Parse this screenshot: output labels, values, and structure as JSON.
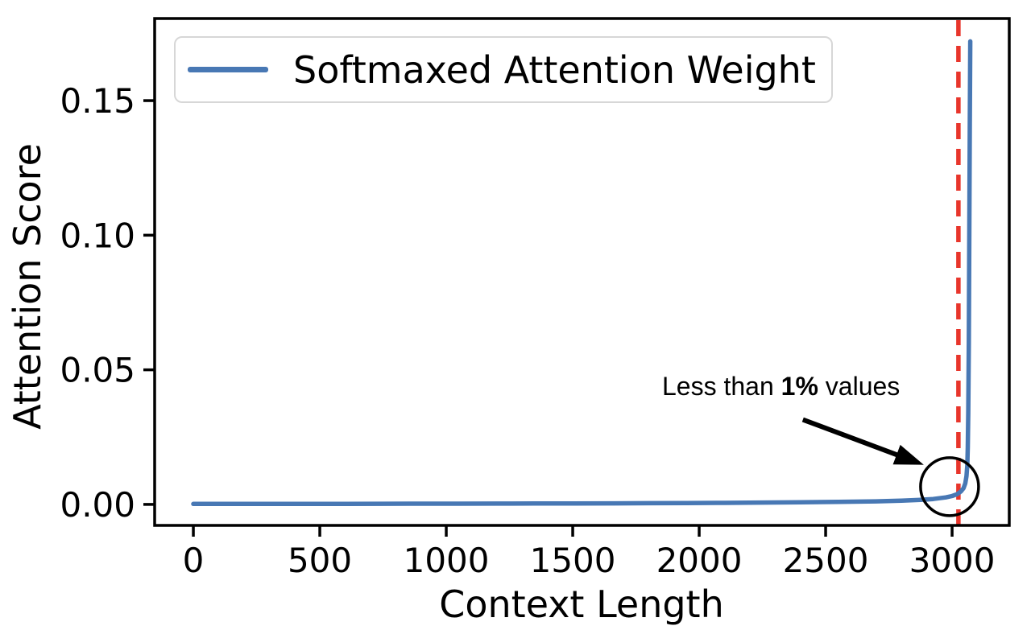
{
  "chart_data": {
    "type": "line",
    "title": "",
    "xlabel": "Context Length",
    "ylabel": "Attention Score",
    "xlim": [
      -153,
      3226
    ],
    "ylim": [
      -0.0078,
      0.1805
    ],
    "x_ticks": [
      0,
      500,
      1000,
      1500,
      2000,
      2500,
      3000
    ],
    "x_tick_labels": [
      "0",
      "500",
      "1000",
      "1500",
      "2000",
      "2500",
      "3000"
    ],
    "y_ticks": [
      0.0,
      0.05,
      0.1,
      0.15
    ],
    "y_tick_labels": [
      "0.00",
      "0.05",
      "0.10",
      "0.15"
    ],
    "grid": false,
    "legend": {
      "position": "upper-left",
      "label": "Softmaxed Attention Weight",
      "line_color": "#4878b4"
    },
    "series": [
      {
        "name": "Softmaxed Attention Weight",
        "color": "#4878b4",
        "points": [
          [
            0,
            0.00018
          ],
          [
            150,
            0.00018
          ],
          [
            300,
            0.0002
          ],
          [
            450,
            0.0002
          ],
          [
            600,
            0.00022
          ],
          [
            750,
            0.00024
          ],
          [
            900,
            0.00026
          ],
          [
            1050,
            0.00028
          ],
          [
            1200,
            0.0003
          ],
          [
            1350,
            0.00033
          ],
          [
            1500,
            0.00036
          ],
          [
            1650,
            0.0004
          ],
          [
            1800,
            0.00045
          ],
          [
            1950,
            0.0005
          ],
          [
            2100,
            0.00058
          ],
          [
            2250,
            0.00068
          ],
          [
            2400,
            0.0008
          ],
          [
            2550,
            0.00095
          ],
          [
            2700,
            0.00115
          ],
          [
            2800,
            0.0014
          ],
          [
            2875,
            0.0017
          ],
          [
            2925,
            0.002
          ],
          [
            2975,
            0.0026
          ],
          [
            3000,
            0.0031
          ],
          [
            3020,
            0.0038
          ],
          [
            3035,
            0.0048
          ],
          [
            3045,
            0.006
          ],
          [
            3052,
            0.0078
          ],
          [
            3057,
            0.0105
          ],
          [
            3060,
            0.0145
          ],
          [
            3062,
            0.021
          ],
          [
            3064,
            0.034
          ],
          [
            3066,
            0.06
          ],
          [
            3068,
            0.1
          ],
          [
            3070,
            0.14
          ],
          [
            3072,
            0.172
          ]
        ]
      }
    ],
    "vline": {
      "x": 3025,
      "color": "#e8352b",
      "dash": [
        20,
        12
      ],
      "width": 5.5
    },
    "annotation": {
      "prefix": "Less than ",
      "bold": "1%",
      "suffix": " values",
      "color": "#000000",
      "arrow_from": [
        2410,
        0.0315
      ],
      "arrow_to": [
        2888,
        0.0147
      ],
      "circle_center": [
        2990,
        0.0066
      ],
      "circle_radius_px": 36
    },
    "peak_value": 0.172,
    "peak_x": 3072
  },
  "colors": {
    "line_blue": "#4878b4",
    "dashed_red": "#e8352b",
    "spine": "#000000",
    "legend_border": "#d7d7d7",
    "text": "#000000"
  }
}
